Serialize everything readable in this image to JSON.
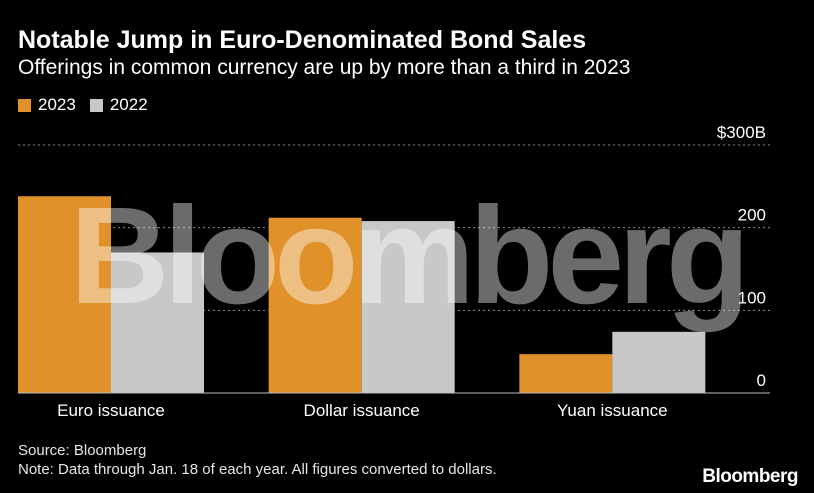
{
  "header": {
    "title": "Notable Jump in Euro-Denominated Bond Sales",
    "subtitle": "Offerings in common currency are up by more than a third in 2023"
  },
  "legend": [
    {
      "label": "2023",
      "color": "#e0912a"
    },
    {
      "label": "2022",
      "color": "#c8c8c8"
    }
  ],
  "chart_data": {
    "type": "bar",
    "categories": [
      "Euro issuance",
      "Dollar issuance",
      "Yuan issuance"
    ],
    "series": [
      {
        "name": "2023",
        "values": [
          238,
          212,
          47
        ],
        "color": "#e0912a"
      },
      {
        "name": "2022",
        "values": [
          170,
          208,
          74
        ],
        "color": "#c8c8c8"
      }
    ],
    "ylim": [
      0,
      300
    ],
    "yticks": [
      {
        "value": 300,
        "label": "$300B"
      },
      {
        "value": 200,
        "label": "200"
      },
      {
        "value": 100,
        "label": "100"
      },
      {
        "value": 0,
        "label": "0"
      }
    ],
    "grid": true,
    "legend_position": "top-left",
    "watermark": "Bloomberg"
  },
  "footer": {
    "source": "Source: Bloomberg",
    "note": "Note: Data through Jan. 18 of each year. All figures converted to dollars.",
    "brand": "Bloomberg"
  }
}
